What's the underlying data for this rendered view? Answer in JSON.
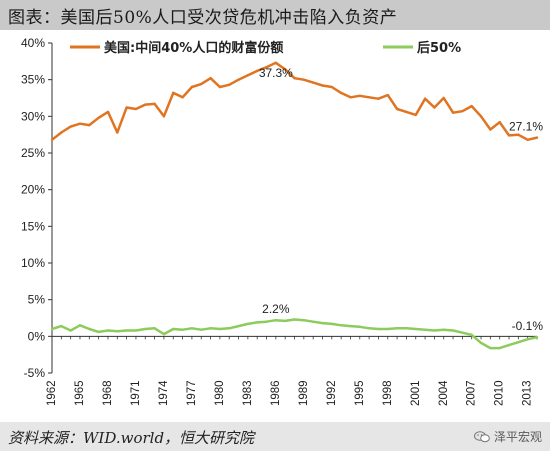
{
  "title": "图表：美国后50%人口受次贷危机冲击陷入负资产",
  "source": "资料来源：WID.world，恒大研究院",
  "watermark": "泽平宏观",
  "chart_data": {
    "type": "line",
    "ylim": [
      -5,
      40
    ],
    "yticks": [
      -5,
      0,
      5,
      10,
      15,
      20,
      25,
      30,
      35,
      40
    ],
    "ytick_suffix": "%",
    "x": [
      1962,
      1963,
      1964,
      1965,
      1966,
      1967,
      1968,
      1969,
      1970,
      1971,
      1972,
      1973,
      1974,
      1975,
      1976,
      1977,
      1978,
      1979,
      1980,
      1981,
      1982,
      1983,
      1984,
      1985,
      1986,
      1987,
      1988,
      1989,
      1990,
      1991,
      1992,
      1993,
      1994,
      1995,
      1996,
      1997,
      1998,
      1999,
      2000,
      2001,
      2002,
      2003,
      2004,
      2005,
      2006,
      2007,
      2008,
      2009,
      2010,
      2011,
      2012,
      2013,
      2014
    ],
    "xticks": [
      1962,
      1965,
      1968,
      1971,
      1974,
      1977,
      1980,
      1983,
      1986,
      1989,
      1992,
      1995,
      1998,
      2001,
      2004,
      2007,
      2010,
      2013
    ],
    "grid": false,
    "legend_position": "top",
    "series": [
      {
        "name": "美国:中间40%人口的财富份额",
        "color": "#e07420",
        "values": [
          26.8,
          27.8,
          28.6,
          29.0,
          28.8,
          29.8,
          30.6,
          27.8,
          31.2,
          31.0,
          31.6,
          31.7,
          30.0,
          33.2,
          32.6,
          34.0,
          34.4,
          35.2,
          34.0,
          34.3,
          35.0,
          35.6,
          36.2,
          36.7,
          37.3,
          36.4,
          35.2,
          35.0,
          34.6,
          34.2,
          34.0,
          33.2,
          32.6,
          32.8,
          32.6,
          32.4,
          32.9,
          31.0,
          30.6,
          30.2,
          32.4,
          31.2,
          32.5,
          30.5,
          30.7,
          31.4,
          30.0,
          28.2,
          29.2,
          27.4,
          27.5,
          26.8,
          27.1
        ]
      },
      {
        "name": "后50%",
        "color": "#8ccb5c",
        "values": [
          1.0,
          1.4,
          0.8,
          1.5,
          1.0,
          0.6,
          0.8,
          0.7,
          0.8,
          0.8,
          1.0,
          1.1,
          0.3,
          1.0,
          0.9,
          1.1,
          0.9,
          1.1,
          1.0,
          1.1,
          1.4,
          1.7,
          1.9,
          2.0,
          2.2,
          2.1,
          2.3,
          2.2,
          2.0,
          1.8,
          1.7,
          1.5,
          1.4,
          1.3,
          1.1,
          1.0,
          1.0,
          1.1,
          1.1,
          1.0,
          0.9,
          0.8,
          0.9,
          0.8,
          0.5,
          0.2,
          -0.9,
          -1.6,
          -1.6,
          -1.2,
          -0.8,
          -0.4,
          -0.1
        ]
      }
    ],
    "annotations": [
      {
        "series": 0,
        "x": 1986,
        "text": "37.3%"
      },
      {
        "series": 0,
        "x": 2014,
        "text": "27.1%"
      },
      {
        "series": 1,
        "x": 1986,
        "text": "2.2%"
      },
      {
        "series": 1,
        "x": 2014,
        "text": "-0.1%"
      }
    ]
  }
}
